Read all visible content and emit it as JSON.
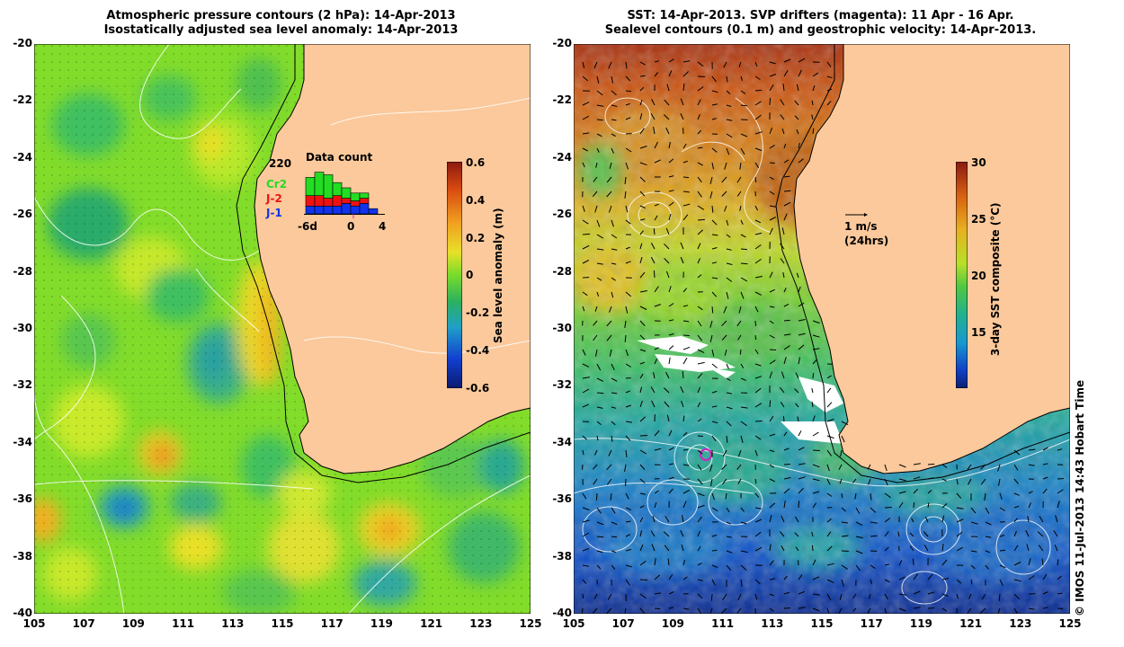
{
  "left_panel": {
    "title_line1": "Atmospheric pressure contours (2 hPa): 14-Apr-2013",
    "title_line2": "Isostatically adjusted sea level anomaly: 14-Apr-2013",
    "colorbar": {
      "label": "Sea level anomaly (m)",
      "ticks": [
        "0.6",
        "0.4",
        "0.2",
        "0",
        "-0.2",
        "-0.4",
        "-0.6"
      ]
    },
    "data_count": {
      "title": "Data count",
      "max_value": "220",
      "satellites": [
        {
          "name": "Cr2",
          "color": "#22dd22"
        },
        {
          "name": "J-2",
          "color": "#ee1111"
        },
        {
          "name": "J-1",
          "color": "#1133ee"
        }
      ],
      "axis_ticks": [
        "-6d",
        "0",
        "4"
      ],
      "bars": [
        {
          "j1": 0.15,
          "j2": 0.2,
          "cr2": 0.35
        },
        {
          "j1": 0.15,
          "j2": 0.2,
          "cr2": 0.45
        },
        {
          "j1": 0.15,
          "j2": 0.15,
          "cr2": 0.45
        },
        {
          "j1": 0.15,
          "j2": 0.2,
          "cr2": 0.25
        },
        {
          "j1": 0.2,
          "j2": 0.1,
          "cr2": 0.2
        },
        {
          "j1": 0.15,
          "j2": 0.1,
          "cr2": 0.15
        },
        {
          "j1": 0.2,
          "j2": 0.1,
          "cr2": 0.1
        },
        {
          "j1": 0.1,
          "j2": 0.0,
          "cr2": 0.0
        }
      ]
    }
  },
  "right_panel": {
    "title_line1": "SST: 14-Apr-2013. SVP drifters (magenta): 11 Apr - 16 Apr.",
    "title_line2": "Sealevel contours (0.1 m) and geostrophic velocity: 14-Apr-2013.",
    "velocity_scale": {
      "label": "1 m/s",
      "sublabel": "(24hrs)"
    },
    "colorbar": {
      "label": "3-day SST composite (°C)",
      "ticks": [
        "30",
        "25",
        "20",
        "15"
      ]
    }
  },
  "axes": {
    "y_ticks": [
      "-20",
      "-22",
      "-24",
      "-26",
      "-28",
      "-30",
      "-32",
      "-34",
      "-36",
      "-38",
      "-40"
    ],
    "x_ticks": [
      "105",
      "107",
      "109",
      "111",
      "113",
      "115",
      "117",
      "119",
      "121",
      "123",
      "125"
    ]
  },
  "credit": "© IMOS 11-Jul-2013 14:43 Hobart Time",
  "colors": {
    "land": "#fbc99b",
    "sla_background": "#7fdc2a",
    "sst_warm": "#cc5510",
    "sst_cold": "#1050c8"
  }
}
